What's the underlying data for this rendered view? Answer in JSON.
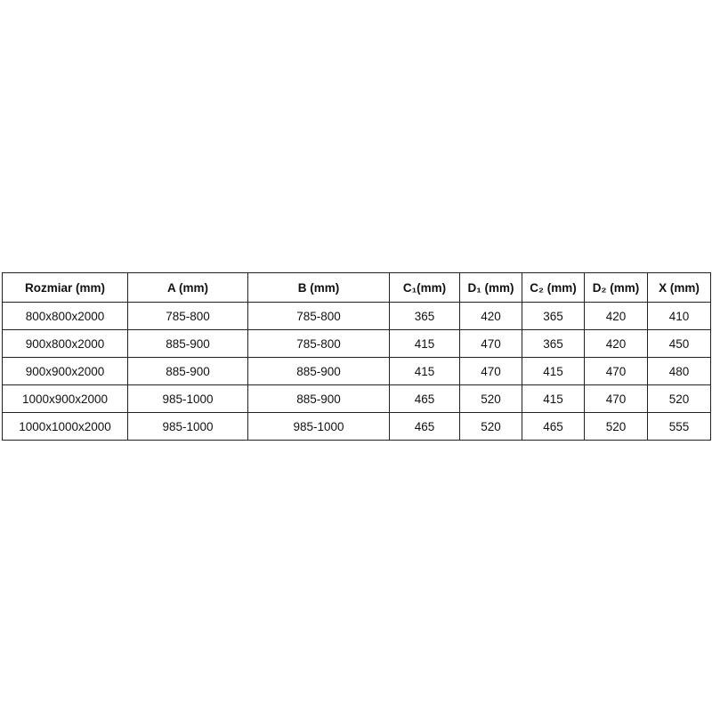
{
  "table": {
    "headers": [
      "Rozmiar (mm)",
      "A (mm)",
      "B (mm)",
      "C₁(mm)",
      "D₁ (mm)",
      "C₂ (mm)",
      "D₂ (mm)",
      "X (mm)"
    ],
    "rows": [
      [
        "800x800x2000",
        "785-800",
        "785-800",
        "365",
        "420",
        "365",
        "420",
        "410"
      ],
      [
        "900x800x2000",
        "885-900",
        "785-800",
        "415",
        "470",
        "365",
        "420",
        "450"
      ],
      [
        "900x900x2000",
        "885-900",
        "885-900",
        "415",
        "470",
        "415",
        "470",
        "480"
      ],
      [
        "1000x900x2000",
        "985-1000",
        "885-900",
        "465",
        "520",
        "415",
        "470",
        "520"
      ],
      [
        "1000x1000x2000",
        "985-1000",
        "985-1000",
        "465",
        "520",
        "465",
        "520",
        "555"
      ]
    ]
  }
}
